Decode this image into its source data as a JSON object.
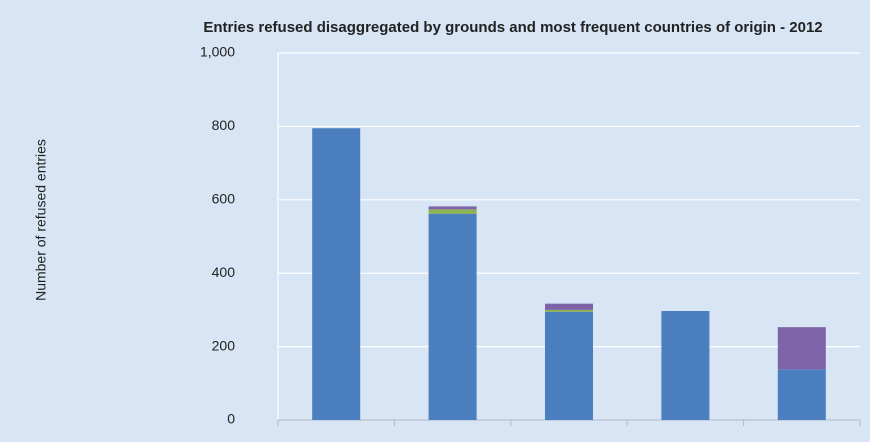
{
  "chart_data": {
    "type": "stacked_bar",
    "title": "Entries refused disaggregated by grounds and most frequent countries of origin - 2012",
    "y_label": "Number of refused entries",
    "categories": [
      null,
      null,
      null,
      null,
      null
    ],
    "series": [
      {
        "color": "#4a7ebf",
        "values": [
          795,
          562,
          295,
          297,
          138
        ]
      },
      {
        "color": "#8fb350",
        "values": [
          0,
          12,
          5,
          0,
          0
        ]
      },
      {
        "color": "#7f63a8",
        "values": [
          0,
          8,
          17,
          0,
          115
        ]
      }
    ],
    "ylim": [
      0,
      1000
    ],
    "yticks": [
      0,
      200,
      400,
      600,
      800,
      {
        "value": 1000,
        "label": "1,000"
      }
    ],
    "grid": true
  }
}
